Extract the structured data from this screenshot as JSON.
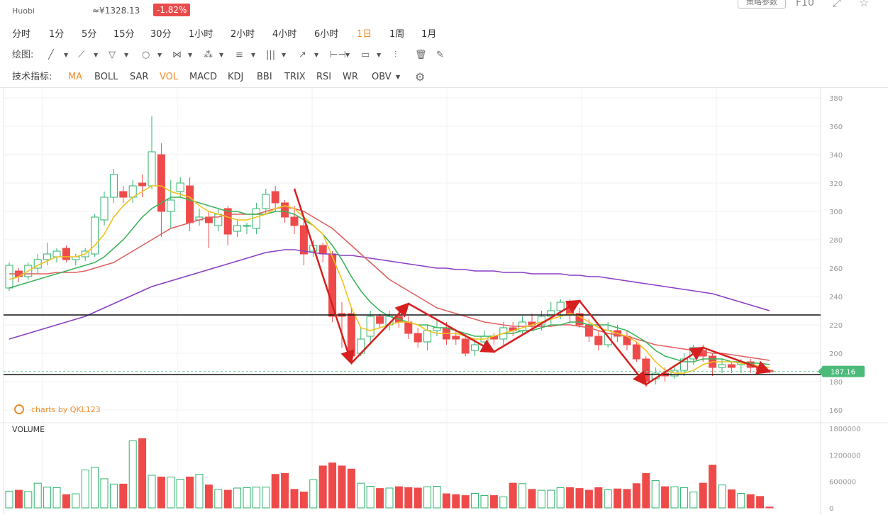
{
  "header": {
    "exchange": "Huobi",
    "cny_price": "≈¥1328.13",
    "change": "-1.82%",
    "settings_button": "策略参数",
    "f10": "F10"
  },
  "timeframes": [
    "分时",
    "1分",
    "5分",
    "15分",
    "30分",
    "1小时",
    "2小时",
    "4小时",
    "6小时",
    "1日",
    "1周",
    "1月"
  ],
  "active_timeframe": "1日",
  "drawing_label": "绘图:",
  "indicators_label": "技术指标:",
  "indicators": [
    "MA",
    "BOLL",
    "SAR",
    "VOL",
    "MACD",
    "KDJ",
    "BBI",
    "TRIX",
    "RSI",
    "WR",
    "OBV"
  ],
  "active_indicators": [
    "MA",
    "VOL"
  ],
  "watermark": "charts by QKL123",
  "volume_label": "VOLUME",
  "current_price_label": "187.16",
  "colors": {
    "up": "#2db36b",
    "down": "#ef4a4a",
    "ma_yellow": "#f2c21a",
    "ma_green": "#3cb45a",
    "ma_red": "#e06060",
    "ma_purple": "#8a3fc4",
    "accent": "#f08c2d",
    "arrow": "#d61f1f"
  },
  "chart_data": {
    "type": "candlestick",
    "y_ticks": [
      160,
      180,
      200,
      220,
      240,
      260,
      280,
      300,
      320,
      340,
      360,
      380
    ],
    "ylim": [
      150,
      387
    ],
    "volume_ticks": [
      "0",
      "600000",
      "1200000",
      "1800000"
    ],
    "volume_max": 1800000,
    "candles": [
      [
        246,
        262,
        244,
        264
      ],
      [
        258,
        254,
        250,
        260
      ],
      [
        254,
        262,
        252,
        264
      ],
      [
        260,
        266,
        256,
        270
      ],
      [
        266,
        270,
        262,
        278
      ],
      [
        268,
        272,
        264,
        274
      ],
      [
        274,
        266,
        264,
        276
      ],
      [
        266,
        268,
        262,
        270
      ],
      [
        268,
        272,
        265,
        274
      ],
      [
        270,
        296,
        268,
        298
      ],
      [
        294,
        310,
        290,
        314
      ],
      [
        310,
        326,
        306,
        330
      ],
      [
        314,
        310,
        306,
        318
      ],
      [
        310,
        318,
        306,
        322
      ],
      [
        320,
        318,
        310,
        326
      ],
      [
        318,
        342,
        316,
        367
      ],
      [
        340,
        300,
        282,
        348
      ],
      [
        300,
        308,
        288,
        322
      ],
      [
        314,
        320,
        310,
        324
      ],
      [
        318,
        292,
        286,
        324
      ],
      [
        294,
        296,
        290,
        302
      ],
      [
        296,
        292,
        274,
        300
      ],
      [
        290,
        298,
        286,
        302
      ],
      [
        302,
        284,
        276,
        304
      ],
      [
        286,
        290,
        282,
        294
      ],
      [
        290,
        290,
        284,
        292
      ],
      [
        288,
        302,
        284,
        306
      ],
      [
        302,
        312,
        298,
        316
      ],
      [
        314,
        306,
        300,
        318
      ],
      [
        306,
        296,
        292,
        308
      ],
      [
        296,
        290,
        284,
        304
      ],
      [
        290,
        270,
        262,
        294
      ],
      [
        272,
        276,
        268,
        280
      ],
      [
        276,
        270,
        264,
        278
      ],
      [
        270,
        226,
        222,
        272
      ],
      [
        228,
        226,
        204,
        236
      ],
      [
        228,
        198,
        196,
        232
      ],
      [
        200,
        210,
        198,
        218
      ],
      [
        212,
        226,
        206,
        230
      ],
      [
        226,
        221,
        218,
        228
      ],
      [
        220,
        226,
        216,
        230
      ],
      [
        226,
        222,
        218,
        230
      ],
      [
        222,
        214,
        210,
        226
      ],
      [
        214,
        208,
        204,
        218
      ],
      [
        208,
        216,
        202,
        220
      ],
      [
        216,
        218,
        212,
        224
      ],
      [
        218,
        210,
        206,
        222
      ],
      [
        212,
        210,
        206,
        216
      ],
      [
        210,
        200,
        198,
        214
      ],
      [
        202,
        206,
        198,
        210
      ],
      [
        208,
        212,
        204,
        216
      ],
      [
        212,
        210,
        206,
        214
      ],
      [
        210,
        218,
        206,
        222
      ],
      [
        218,
        216,
        212,
        222
      ],
      [
        216,
        222,
        214,
        226
      ],
      [
        222,
        220,
        216,
        228
      ],
      [
        220,
        226,
        216,
        230
      ],
      [
        226,
        230,
        220,
        236
      ],
      [
        230,
        236,
        224,
        238
      ],
      [
        236,
        228,
        222,
        238
      ],
      [
        228,
        220,
        218,
        232
      ],
      [
        220,
        212,
        208,
        224
      ],
      [
        212,
        206,
        202,
        216
      ],
      [
        206,
        216,
        204,
        222
      ],
      [
        216,
        212,
        208,
        220
      ],
      [
        212,
        206,
        202,
        216
      ],
      [
        206,
        196,
        194,
        208
      ],
      [
        196,
        180,
        176,
        198
      ],
      [
        182,
        186,
        178,
        190
      ],
      [
        186,
        184,
        180,
        190
      ],
      [
        184,
        188,
        182,
        192
      ],
      [
        188,
        196,
        184,
        200
      ],
      [
        196,
        204,
        192,
        206
      ],
      [
        202,
        198,
        194,
        206
      ],
      [
        198,
        190,
        184,
        200
      ],
      [
        190,
        192,
        186,
        196
      ],
      [
        192,
        190,
        186,
        194
      ],
      [
        192,
        194,
        186,
        196
      ],
      [
        194,
        190,
        186,
        196
      ],
      [
        190,
        188,
        186,
        192
      ],
      [
        188,
        187,
        186,
        189
      ]
    ],
    "volumes": [
      380000,
      400000,
      370000,
      560000,
      470000,
      460000,
      300000,
      320000,
      860000,
      920000,
      660000,
      540000,
      540000,
      1520000,
      1570000,
      740000,
      700000,
      700000,
      650000,
      700000,
      760000,
      520000,
      420000,
      400000,
      450000,
      460000,
      470000,
      470000,
      760000,
      780000,
      420000,
      360000,
      640000,
      950000,
      1020000,
      950000,
      880000,
      560000,
      490000,
      440000,
      450000,
      480000,
      460000,
      450000,
      480000,
      490000,
      320000,
      300000,
      280000,
      330000,
      280000,
      280000,
      250000,
      560000,
      550000,
      420000,
      400000,
      400000,
      460000,
      460000,
      440000,
      400000,
      460000,
      410000,
      430000,
      420000,
      550000,
      780000,
      620000,
      480000,
      480000,
      460000,
      360000,
      560000,
      970000,
      520000,
      410000,
      330000,
      300000,
      260000,
      20000
    ],
    "ma_yellow": [
      252,
      254,
      258,
      262,
      265,
      268,
      268,
      268,
      270,
      276,
      284,
      296,
      304,
      310,
      314,
      318,
      318,
      314,
      312,
      310,
      304,
      300,
      298,
      296,
      294,
      294,
      296,
      298,
      302,
      304,
      302,
      296,
      290,
      284,
      268,
      252,
      232,
      218,
      216,
      218,
      220,
      222,
      222,
      220,
      216,
      214,
      214,
      214,
      212,
      210,
      210,
      212,
      214,
      216,
      218,
      220,
      222,
      224,
      226,
      228,
      226,
      222,
      218,
      216,
      214,
      212,
      208,
      202,
      194,
      188,
      186,
      186,
      188,
      192,
      194,
      194,
      194,
      193,
      192,
      191,
      190
    ],
    "ma_green": [
      246,
      248,
      250,
      252,
      254,
      256,
      258,
      260,
      262,
      264,
      268,
      274,
      280,
      288,
      296,
      302,
      306,
      310,
      310,
      308,
      306,
      304,
      302,
      300,
      300,
      298,
      298,
      298,
      300,
      300,
      298,
      294,
      290,
      284,
      276,
      266,
      254,
      244,
      236,
      230,
      226,
      224,
      222,
      220,
      220,
      218,
      218,
      216,
      214,
      212,
      212,
      212,
      214,
      214,
      216,
      216,
      218,
      220,
      220,
      222,
      222,
      220,
      220,
      220,
      218,
      216,
      212,
      208,
      202,
      198,
      196,
      194,
      194,
      196,
      196,
      196,
      194,
      194,
      193,
      193,
      192
    ],
    "ma_red": [
      256,
      256,
      256,
      256,
      256,
      257,
      257,
      257,
      258,
      260,
      262,
      264,
      268,
      272,
      276,
      280,
      284,
      288,
      290,
      292,
      294,
      296,
      296,
      298,
      298,
      298,
      298,
      300,
      302,
      303,
      302,
      300,
      296,
      292,
      288,
      282,
      276,
      270,
      264,
      258,
      252,
      248,
      244,
      240,
      236,
      232,
      230,
      228,
      226,
      224,
      222,
      221,
      220,
      219,
      219,
      219,
      219,
      219,
      220,
      220,
      219,
      218,
      216,
      214,
      213,
      212,
      210,
      208,
      206,
      205,
      204,
      203,
      202,
      201,
      200,
      200,
      199,
      198,
      197,
      196,
      195
    ],
    "ma_purple": [
      210,
      212,
      214,
      216,
      218,
      220,
      222,
      224,
      226,
      229,
      232,
      235,
      238,
      241,
      244,
      247,
      249,
      251,
      253,
      255,
      257,
      259,
      261,
      263,
      265,
      267,
      269,
      271,
      272,
      273,
      273,
      272,
      271,
      270,
      270,
      269,
      269,
      268,
      267,
      266,
      265,
      264,
      263,
      262,
      261,
      260,
      260,
      259,
      259,
      258,
      258,
      258,
      257,
      257,
      257,
      256,
      256,
      256,
      256,
      255,
      255,
      254,
      254,
      253,
      252,
      251,
      250,
      249,
      248,
      247,
      246,
      245,
      244,
      243,
      242,
      240,
      238,
      236,
      234,
      232,
      230
    ],
    "horizontal_lines": [
      227,
      185
    ],
    "current_price": 187.16,
    "arrows": [
      [
        [
          30,
          316
        ],
        [
          36,
          193
        ]
      ],
      [
        [
          36,
          193
        ],
        [
          42,
          235
        ]
      ],
      [
        [
          42,
          235
        ],
        [
          51,
          201
        ]
      ],
      [
        [
          51,
          201
        ],
        [
          60,
          237
        ]
      ],
      [
        [
          60,
          237
        ],
        [
          67,
          178
        ]
      ],
      [
        [
          67,
          178
        ],
        [
          73,
          204
        ]
      ],
      [
        [
          73,
          204
        ],
        [
          80,
          187
        ]
      ]
    ]
  }
}
